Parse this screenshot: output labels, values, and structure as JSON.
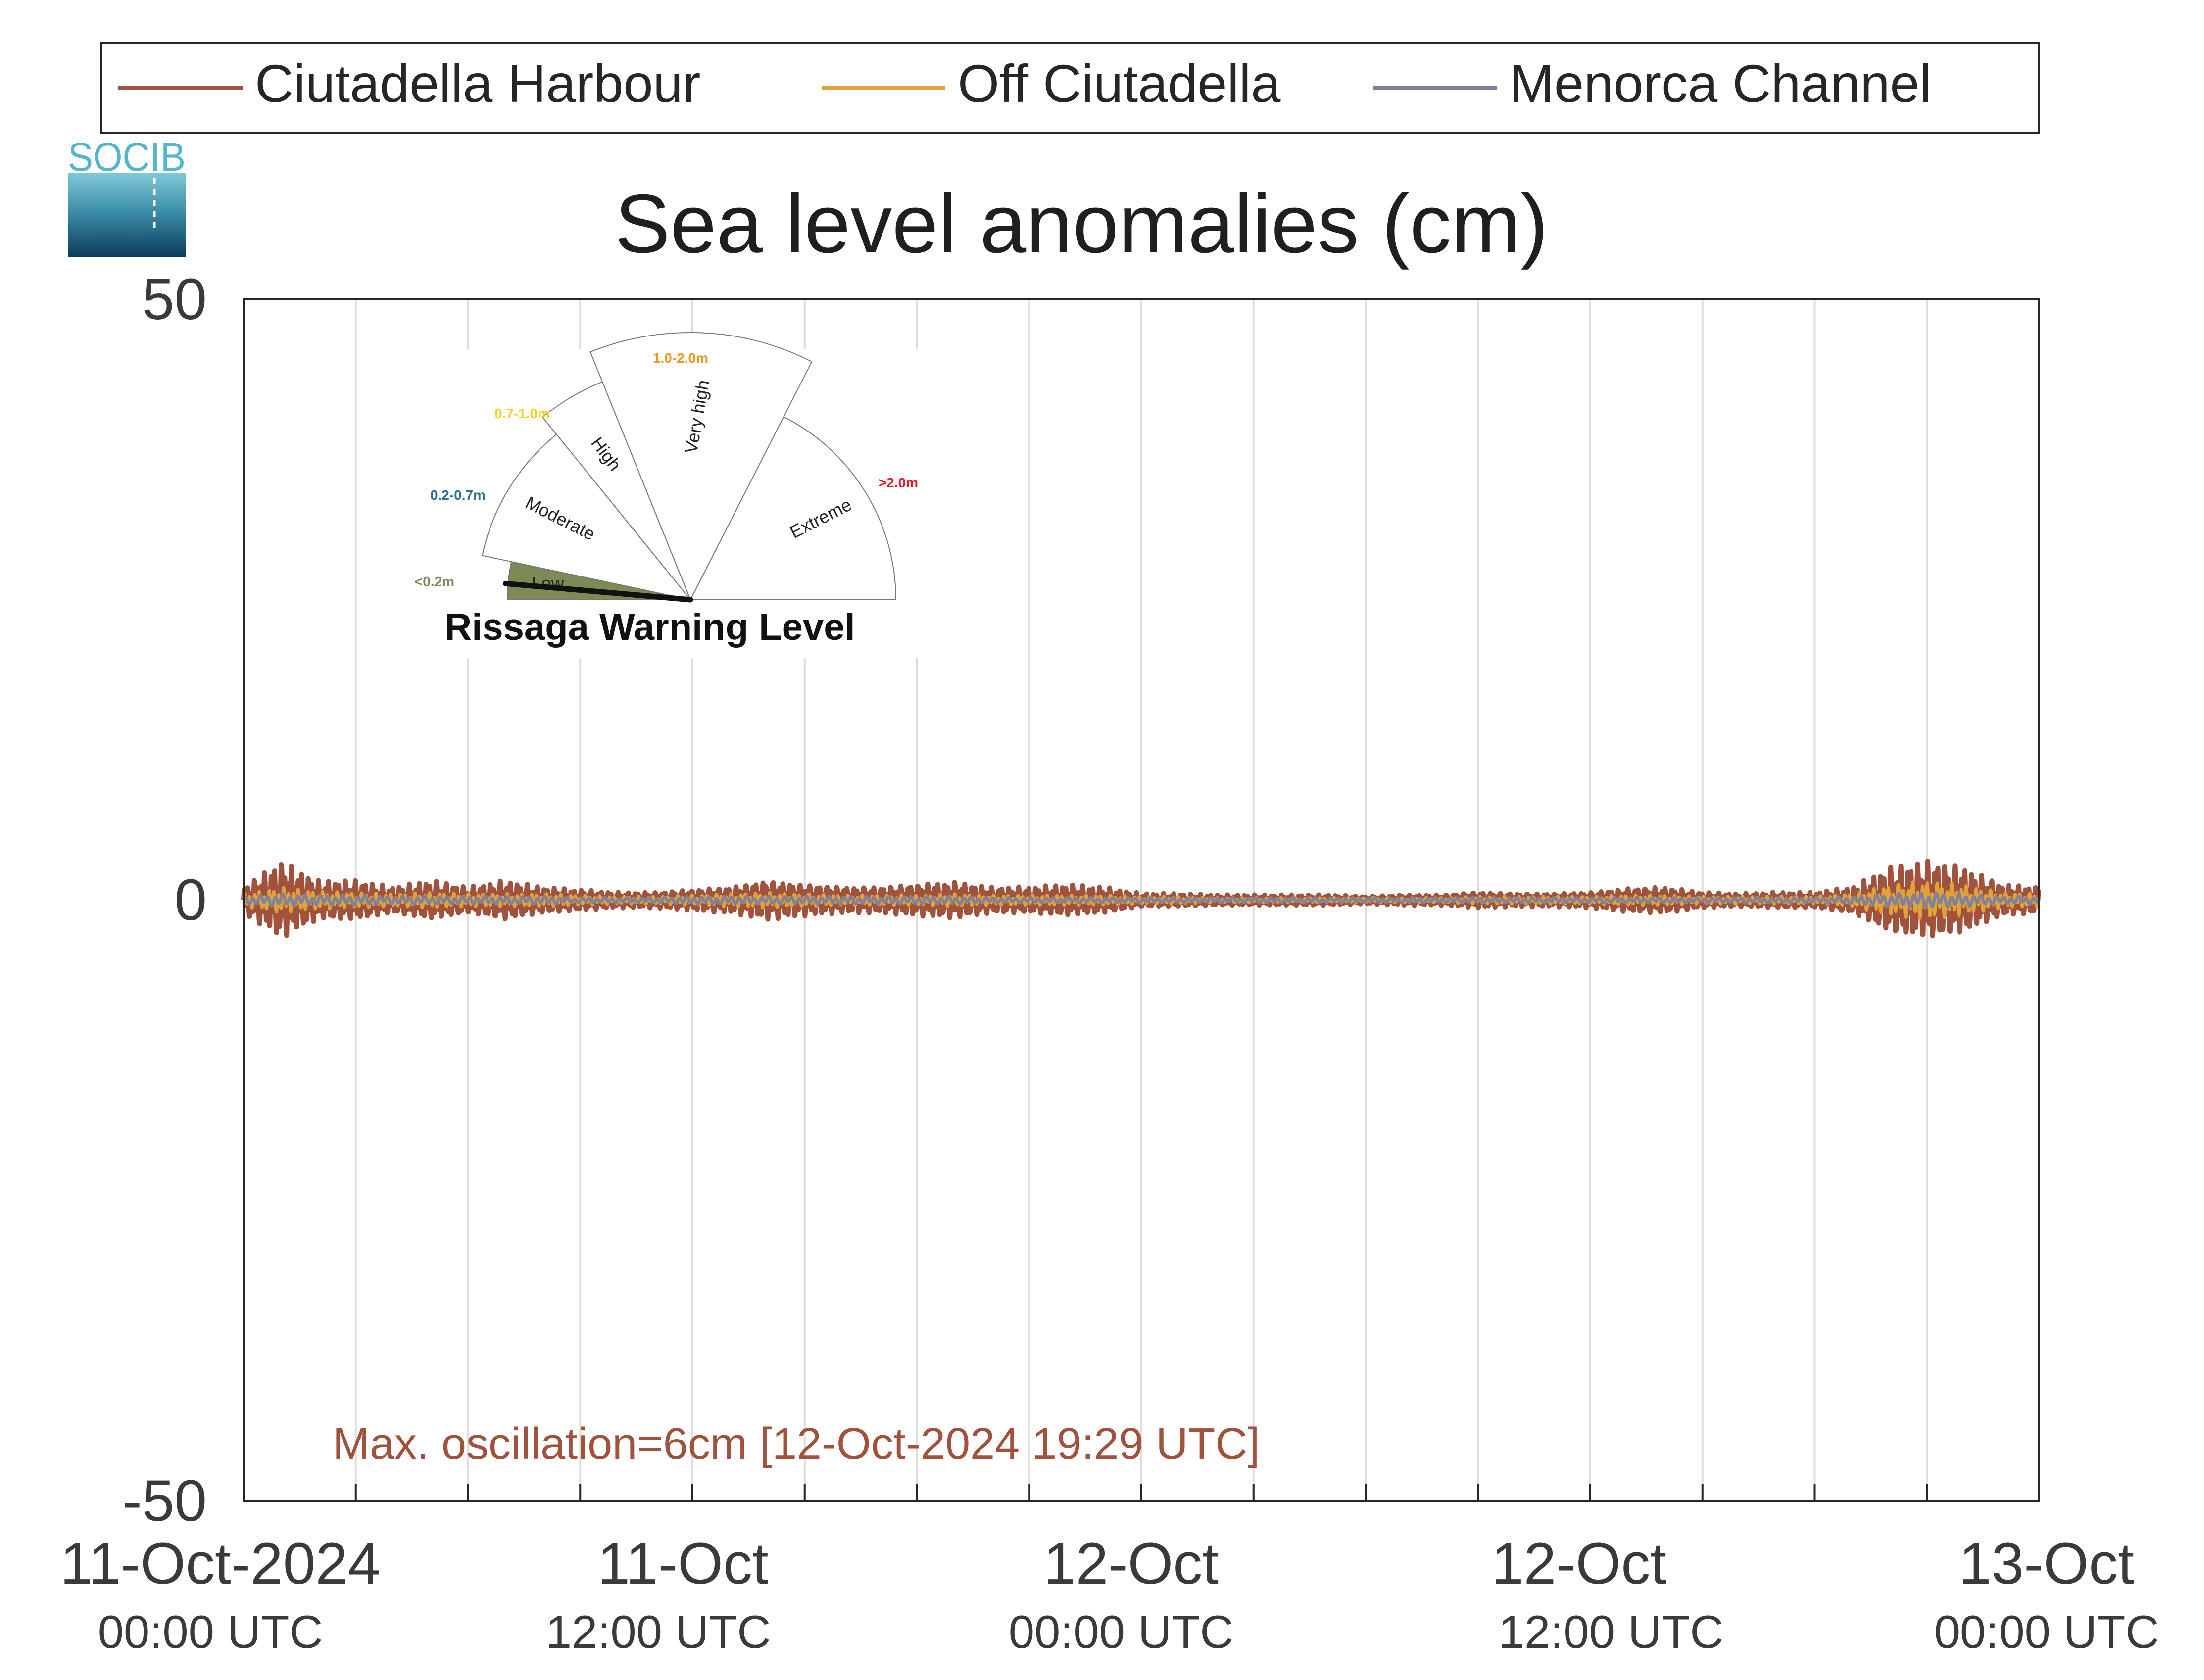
{
  "logo": {
    "text": "SOCIB"
  },
  "legend": {
    "placement": "top",
    "items": [
      {
        "label": "Ciutadella Harbour",
        "color": "#A0523D"
      },
      {
        "label": "Off Ciutadella",
        "color": "#E2A23A"
      },
      {
        "label": "Menorca Channel",
        "color": "#7F829B"
      }
    ]
  },
  "gauge": {
    "title": "Rissaga Warning Level",
    "needle_level": "Low",
    "sectors": [
      {
        "label": "Low",
        "range_label": "<0.2m",
        "color": "#7C8A56"
      },
      {
        "label": "Moderate",
        "range_label": "0.2-0.7m",
        "color": "#2F6F8F"
      },
      {
        "label": "High",
        "range_label": "0.7-1.0m",
        "color": "#F2D21B"
      },
      {
        "label": "Very high",
        "range_label": "1.0-2.0m",
        "color": "#F0961E"
      },
      {
        "label": "Extreme",
        "range_label": ">2.0m",
        "color": "#E0141E"
      }
    ]
  },
  "annotation": {
    "text": "Max. oscillation=6cm [12-Oct-2024 19:29 UTC]",
    "color": "#A0523D"
  },
  "chart_data": {
    "type": "line",
    "title": "Sea level anomalies (cm)",
    "xlabel": "",
    "ylabel": "",
    "ylim": [
      -50,
      50
    ],
    "xlim_hours": [
      0,
      48
    ],
    "grid": true,
    "yticks": [
      {
        "value": -50,
        "label": "-50"
      },
      {
        "value": 0,
        "label": "0"
      },
      {
        "value": 50,
        "label": "50"
      }
    ],
    "xticks": [
      {
        "hour": 0,
        "label": "11-Oct-2024",
        "sublabel": "00:00 UTC"
      },
      {
        "hour": 12,
        "label": "11-Oct",
        "sublabel": "12:00 UTC"
      },
      {
        "hour": 24,
        "label": "12-Oct",
        "sublabel": "00:00 UTC"
      },
      {
        "hour": 36,
        "label": "12-Oct",
        "sublabel": "12:00 UTC"
      },
      {
        "hour": 48,
        "label": "13-Oct",
        "sublabel": "00:00 UTC"
      }
    ],
    "x_hours": [
      0,
      1,
      2,
      3,
      4,
      5,
      6,
      7,
      8,
      9,
      10,
      11,
      12,
      13,
      14,
      15,
      16,
      17,
      18,
      19,
      20,
      21,
      22,
      23,
      24,
      25,
      26,
      27,
      28,
      29,
      30,
      31,
      32,
      33,
      34,
      35,
      36,
      37,
      38,
      39,
      40,
      41,
      42,
      43,
      44,
      45,
      46,
      47,
      48
    ],
    "series": [
      {
        "name": "Ciutadella Harbour",
        "color": "#A0523D",
        "envelope_cm": [
          1.0,
          3.0,
          1.5,
          1.5,
          1.0,
          1.5,
          1.0,
          1.5,
          1.0,
          0.8,
          0.6,
          0.6,
          0.8,
          1.0,
          1.5,
          1.2,
          1.0,
          1.0,
          1.2,
          1.4,
          1.0,
          1.0,
          1.2,
          1.0,
          0.5,
          0.5,
          0.4,
          0.4,
          0.4,
          0.4,
          0.3,
          0.4,
          0.4,
          0.6,
          0.5,
          0.5,
          0.6,
          0.9,
          1.0,
          0.6,
          0.5,
          0.6,
          0.6,
          1.0,
          2.5,
          3.0,
          2.5,
          1.2,
          1.0
        ]
      },
      {
        "name": "Off Ciutadella",
        "color": "#E2A23A",
        "envelope_cm": [
          0.5,
          1.0,
          0.7,
          0.6,
          0.5,
          0.6,
          0.5,
          0.5,
          0.5,
          0.4,
          0.3,
          0.3,
          0.4,
          0.5,
          0.6,
          0.5,
          0.4,
          0.4,
          0.4,
          0.5,
          0.4,
          0.4,
          0.4,
          0.4,
          0.3,
          0.3,
          0.2,
          0.2,
          0.2,
          0.2,
          0.2,
          0.2,
          0.2,
          0.3,
          0.3,
          0.3,
          0.3,
          0.4,
          0.4,
          0.3,
          0.3,
          0.3,
          0.3,
          0.5,
          1.2,
          1.5,
          1.2,
          0.6,
          0.5
        ]
      },
      {
        "name": "Menorca Channel",
        "color": "#7F829B",
        "envelope_cm": [
          0.3,
          0.5,
          0.4,
          0.4,
          0.3,
          0.3,
          0.3,
          0.3,
          0.3,
          0.2,
          0.2,
          0.2,
          0.3,
          0.3,
          0.3,
          0.3,
          0.3,
          0.3,
          0.3,
          0.3,
          0.2,
          0.2,
          0.2,
          0.2,
          0.2,
          0.2,
          0.2,
          0.2,
          0.2,
          0.2,
          0.2,
          0.2,
          0.2,
          0.2,
          0.2,
          0.2,
          0.2,
          0.2,
          0.2,
          0.2,
          0.2,
          0.2,
          0.2,
          0.3,
          0.5,
          0.6,
          0.5,
          0.3,
          0.3
        ]
      }
    ]
  }
}
